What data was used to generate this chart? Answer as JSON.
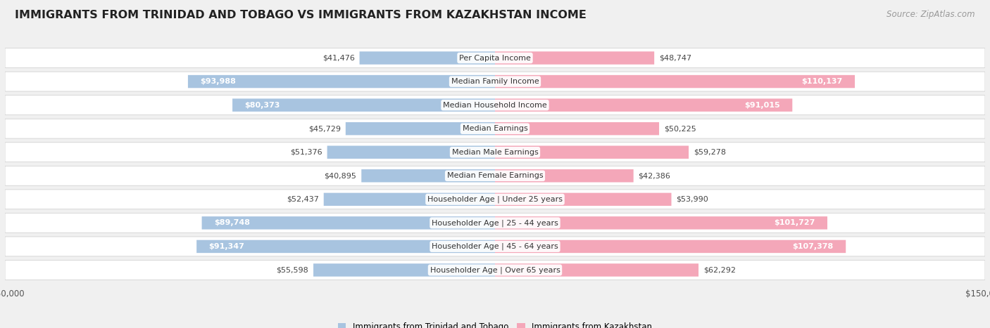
{
  "title": "IMMIGRANTS FROM TRINIDAD AND TOBAGO VS IMMIGRANTS FROM KAZAKHSTAN INCOME",
  "source": "Source: ZipAtlas.com",
  "categories": [
    "Per Capita Income",
    "Median Family Income",
    "Median Household Income",
    "Median Earnings",
    "Median Male Earnings",
    "Median Female Earnings",
    "Householder Age | Under 25 years",
    "Householder Age | 25 - 44 years",
    "Householder Age | 45 - 64 years",
    "Householder Age | Over 65 years"
  ],
  "left_values": [
    41476,
    93988,
    80373,
    45729,
    51376,
    40895,
    52437,
    89748,
    91347,
    55598
  ],
  "right_values": [
    48747,
    110137,
    91015,
    50225,
    59278,
    42386,
    53990,
    101727,
    107378,
    62292
  ],
  "left_labels": [
    "$41,476",
    "$93,988",
    "$80,373",
    "$45,729",
    "$51,376",
    "$40,895",
    "$52,437",
    "$89,748",
    "$91,347",
    "$55,598"
  ],
  "right_labels": [
    "$48,747",
    "$110,137",
    "$91,015",
    "$50,225",
    "$59,278",
    "$42,386",
    "$53,990",
    "$101,727",
    "$107,378",
    "$62,292"
  ],
  "left_label_inside": [
    false,
    true,
    true,
    false,
    false,
    false,
    false,
    true,
    true,
    false
  ],
  "right_label_inside": [
    false,
    true,
    true,
    false,
    false,
    false,
    false,
    true,
    true,
    false
  ],
  "left_color": "#a8c4e0",
  "right_color": "#f4a7b9",
  "left_legend": "Immigrants from Trinidad and Tobago",
  "right_legend": "Immigrants from Kazakhstan",
  "axis_max": 150000,
  "bg_color": "#f0f0f0",
  "row_bg_color": "#ffffff",
  "title_fontsize": 11.5,
  "source_fontsize": 8.5,
  "label_fontsize": 8,
  "category_fontsize": 8
}
